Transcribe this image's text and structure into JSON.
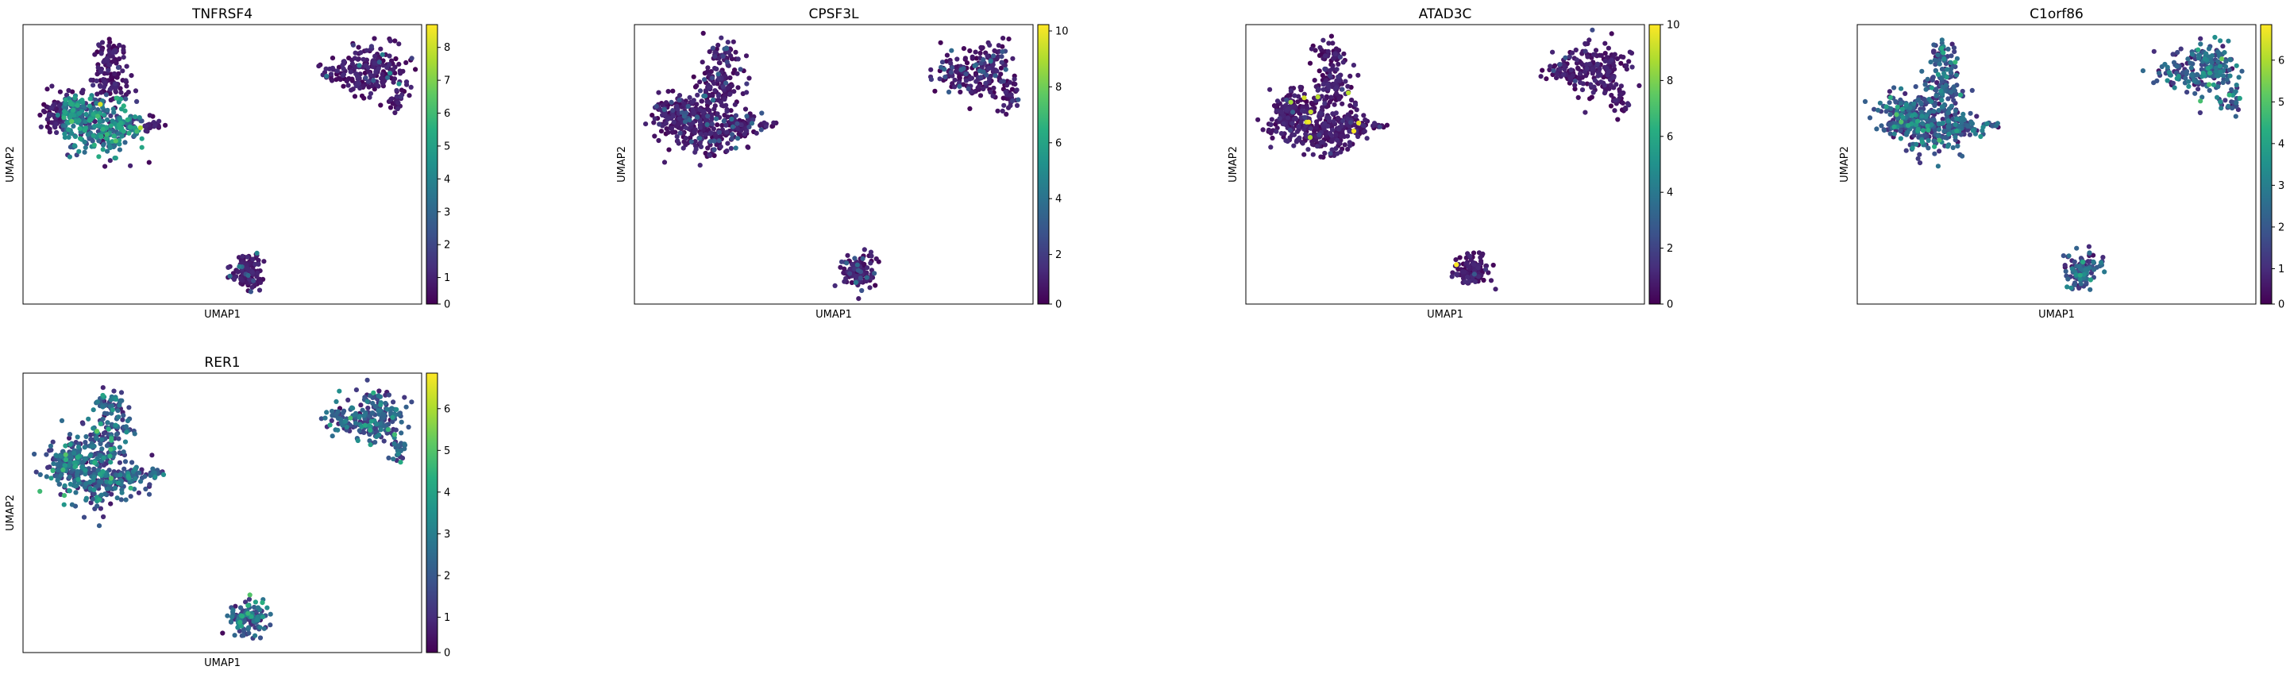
{
  "chart_data": [
    {
      "type": "scatter",
      "title": "TNFRSF4",
      "xlabel": "UMAP1",
      "ylabel": "UMAP2",
      "colorbar": {
        "min": 0,
        "max": 8.5,
        "ticks": [
          "0",
          "1",
          "2",
          "3",
          "4",
          "5",
          "6",
          "7",
          "8"
        ]
      },
      "hotspot": "left-cluster",
      "colormap": "viridis",
      "grid": false
    },
    {
      "type": "scatter",
      "title": "CPSF3L",
      "xlabel": "UMAP1",
      "ylabel": "UMAP2",
      "colorbar": {
        "min": 0,
        "max": 10,
        "ticks": [
          "0",
          "2",
          "4",
          "6",
          "8",
          "10"
        ]
      },
      "hotspot": "none",
      "colormap": "viridis",
      "grid": false
    },
    {
      "type": "scatter",
      "title": "ATAD3C",
      "xlabel": "UMAP1",
      "ylabel": "UMAP2",
      "colorbar": {
        "min": 0,
        "max": 10,
        "ticks": [
          "0",
          "2",
          "4",
          "6",
          "8",
          "10"
        ]
      },
      "hotspot": "sparse",
      "colormap": "viridis",
      "grid": false
    },
    {
      "type": "scatter",
      "title": "C1orf86",
      "xlabel": "UMAP1",
      "ylabel": "UMAP2",
      "colorbar": {
        "min": 0,
        "max": 6.7,
        "ticks": [
          "0",
          "1",
          "2",
          "3",
          "4",
          "5",
          "6"
        ]
      },
      "hotspot": "broad",
      "colormap": "viridis",
      "grid": false
    },
    {
      "type": "scatter",
      "title": "RER1",
      "xlabel": "UMAP1",
      "ylabel": "UMAP2",
      "colorbar": {
        "min": 0,
        "max": 6.7,
        "ticks": [
          "0",
          "1",
          "2",
          "3",
          "4",
          "5",
          "6"
        ]
      },
      "hotspot": "broad",
      "colormap": "viridis",
      "grid": false
    }
  ]
}
